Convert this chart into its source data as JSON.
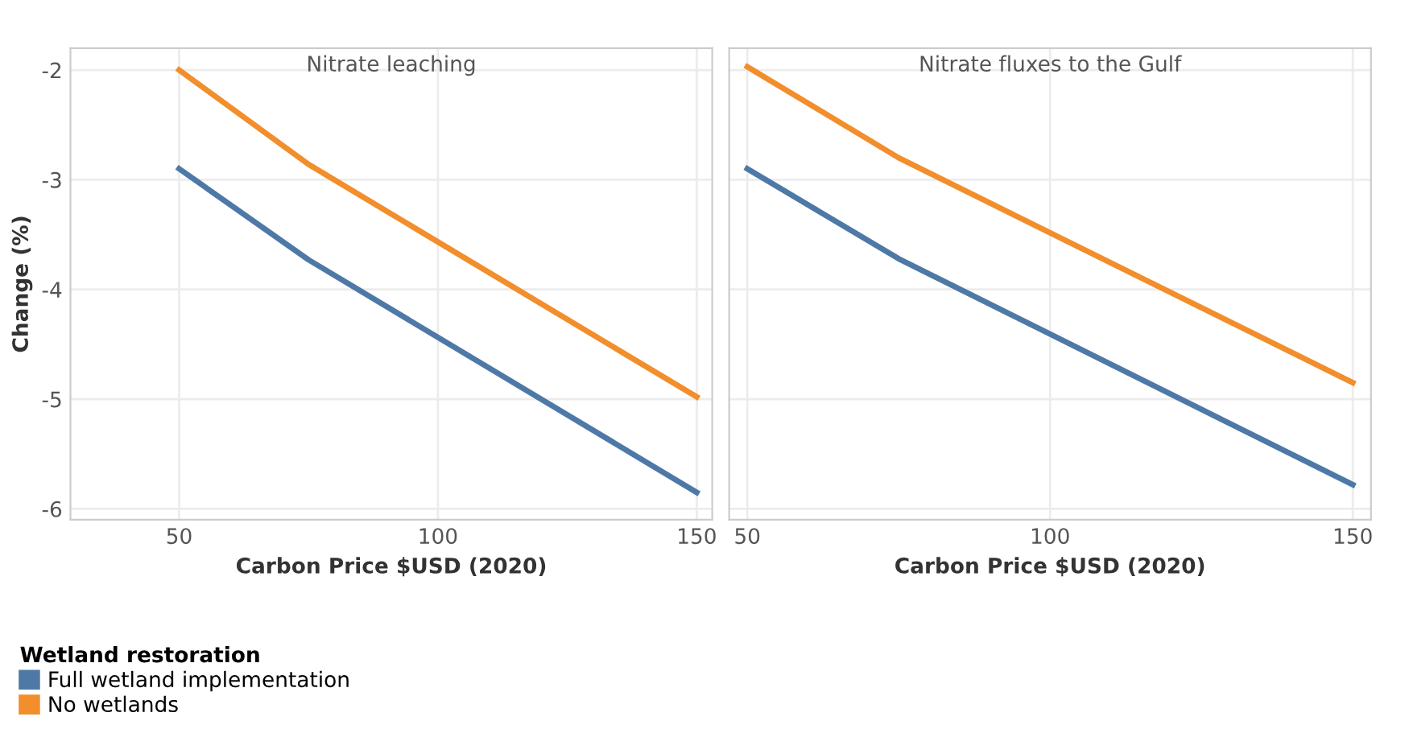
{
  "chart_data": [
    {
      "type": "line",
      "title": "Nitrate leaching",
      "xlabel": "Carbon Price $USD (2020)",
      "ylabel": "Change (%)",
      "legend_title": "Wetland restoration",
      "legend": "bottom left",
      "grid": true,
      "line_style": "solid",
      "marker": "none",
      "xlim": [
        29,
        153
      ],
      "xticks": [
        50,
        100,
        150
      ],
      "ylim": [
        -6.1,
        -1.8
      ],
      "yticks": [
        -2,
        -3,
        -4,
        -5,
        -6
      ],
      "series": [
        {
          "name": "Full wetland implementation",
          "color": "#4e79a7",
          "x": [
            50,
            75,
            150
          ],
          "values": [
            -2.9,
            -3.73,
            -5.85
          ]
        },
        {
          "name": "No wetlands",
          "color": "#f28e2b",
          "x": [
            50,
            75,
            150
          ],
          "values": [
            -2.0,
            -2.86,
            -4.98
          ]
        }
      ]
    },
    {
      "type": "line",
      "title": "Nitrate fluxes to the Gulf",
      "xlabel": "Carbon Price $USD (2020)",
      "grid": true,
      "line_style": "solid",
      "marker": "none",
      "tick_labels": "x",
      "xlim": [
        47,
        153
      ],
      "xticks": [
        50,
        100,
        150
      ],
      "ylim": [
        -6.1,
        -1.8
      ],
      "yticks": [
        -2,
        -3,
        -4,
        -5,
        -6
      ],
      "series": [
        {
          "color": "#4e79a7",
          "x": [
            50,
            75,
            150
          ],
          "values": [
            -2.9,
            -3.72,
            -5.78
          ]
        },
        {
          "color": "#f28e2b",
          "x": [
            50,
            75,
            150
          ],
          "values": [
            -1.97,
            -2.8,
            -4.85
          ]
        }
      ]
    }
  ]
}
